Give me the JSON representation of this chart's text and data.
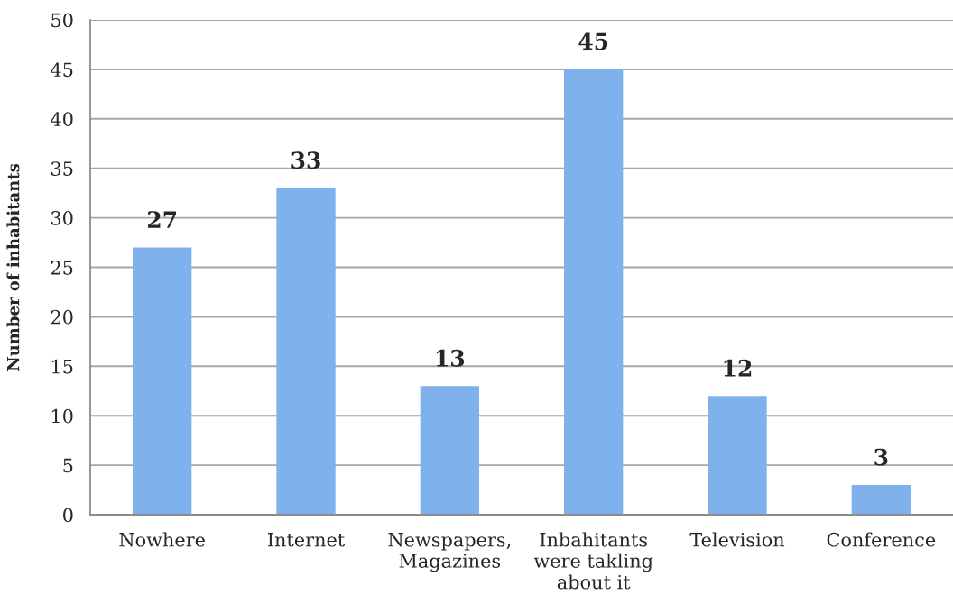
{
  "chart_data": {
    "type": "bar",
    "categories": [
      "Nowhere",
      "Internet",
      "Newspapers,\nMagazines",
      "Inbahitants\nwere takling\nabout it",
      "Television",
      "Conference"
    ],
    "values": [
      27,
      33,
      13,
      45,
      12,
      3
    ],
    "color": "#7fb1ed",
    "ylabel": "Number of inhabitants",
    "ylim": [
      0,
      50
    ],
    "yticks": [
      0,
      5,
      10,
      15,
      20,
      25,
      30,
      35,
      40,
      45,
      50
    ],
    "grid": "y",
    "data_labels": true
  }
}
